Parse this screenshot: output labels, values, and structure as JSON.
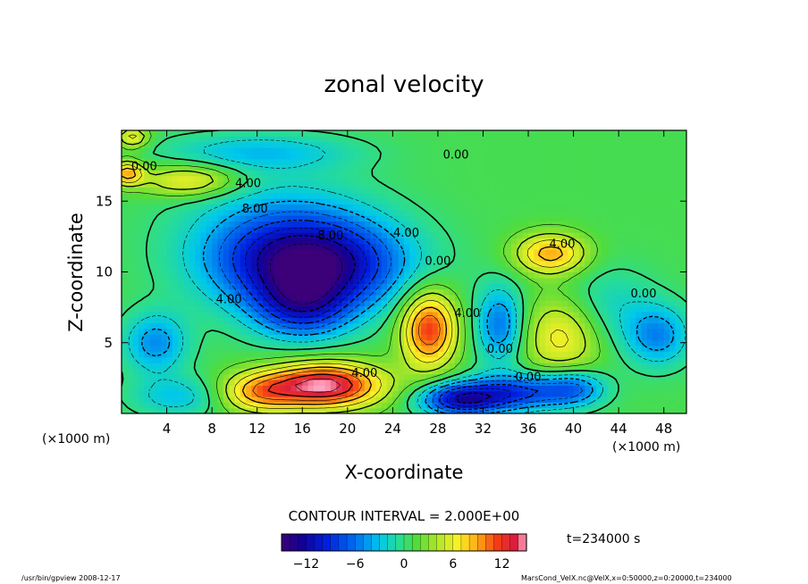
{
  "chart_data": {
    "type": "heatmap",
    "title": "zonal velocity",
    "xlabel": "X-coordinate",
    "ylabel": "Z-coordinate",
    "x_unit_left": "(×1000 m)",
    "x_unit_right": "(×1000 m)",
    "xlim": [
      0,
      50
    ],
    "ylim": [
      0,
      20
    ],
    "x_ticks": [
      "4",
      "8",
      "12",
      "16",
      "20",
      "24",
      "28",
      "32",
      "36",
      "40",
      "44",
      "48"
    ],
    "y_ticks": [
      "5",
      "10",
      "15"
    ],
    "contour_interval_text": "CONTOUR INTERVAL = 2.000E+00",
    "time_text": "t=234000 s",
    "colorbar": {
      "vmin": -15,
      "vmax": 15,
      "ticks": [
        "−12",
        "−6",
        "0",
        "6",
        "12"
      ]
    },
    "contour_labels": [
      {
        "text": "0.00",
        "x": 2,
        "y": 17.2
      },
      {
        "text": "4.00",
        "x": 11.2,
        "y": 16.0
      },
      {
        "text": "8.00",
        "x": 11.8,
        "y": 14.2
      },
      {
        "text": "8.00",
        "x": 18.5,
        "y": 12.3
      },
      {
        "text": "4.00",
        "x": 25.2,
        "y": 12.5
      },
      {
        "text": "0.00",
        "x": 28,
        "y": 10.5
      },
      {
        "text": "0.00",
        "x": 29.6,
        "y": 18.0
      },
      {
        "text": "4.00",
        "x": 39,
        "y": 11.7
      },
      {
        "text": "0.00",
        "x": 46.2,
        "y": 8.2
      },
      {
        "text": "4.00",
        "x": 9.5,
        "y": 7.8
      },
      {
        "text": "4.00",
        "x": 30.6,
        "y": 6.8
      },
      {
        "text": "0.00",
        "x": 33.5,
        "y": 4.3
      },
      {
        "text": "0.00",
        "x": 36,
        "y": 2.3
      },
      {
        "text": "4.00",
        "x": 21.5,
        "y": 2.6
      }
    ],
    "features": [
      {
        "x": 17,
        "z": 10.5,
        "u": -13,
        "sx": 5.5,
        "sz": 2.2
      },
      {
        "x": 16,
        "z": 7.5,
        "u": -8,
        "sx": 3.0,
        "sz": 1.6
      },
      {
        "x": 14,
        "z": 12.5,
        "u": -5,
        "sx": 6.0,
        "sz": 3.0
      },
      {
        "x": 18,
        "z": 2.0,
        "u": 14,
        "sx": 3.5,
        "sz": 1.1
      },
      {
        "x": 12,
        "z": 1.5,
        "u": 7,
        "sx": 2.5,
        "sz": 1.0
      },
      {
        "x": 27.2,
        "z": 6.0,
        "u": 11,
        "sx": 1.7,
        "sz": 1.9
      },
      {
        "x": 33.5,
        "z": 6.3,
        "u": -7,
        "sx": 1.5,
        "sz": 1.9
      },
      {
        "x": 35,
        "z": 1.5,
        "u": -9,
        "sx": 3.0,
        "sz": 0.9
      },
      {
        "x": 30,
        "z": 1.0,
        "u": -12,
        "sx": 2.5,
        "sz": 0.8
      },
      {
        "x": 39,
        "z": 5.5,
        "u": 6,
        "sx": 2.5,
        "sz": 2.0
      },
      {
        "x": 40,
        "z": 1.8,
        "u": -7,
        "sx": 2.0,
        "sz": 0.9
      },
      {
        "x": 38,
        "z": 11.3,
        "u": 8,
        "sx": 2.2,
        "sz": 1.0
      },
      {
        "x": 47.5,
        "z": 5.5,
        "u": -6,
        "sx": 2.0,
        "sz": 1.5
      },
      {
        "x": 3,
        "z": 5.0,
        "u": -6,
        "sx": 2.0,
        "sz": 1.5
      },
      {
        "x": 5,
        "z": 1.2,
        "u": -4,
        "sx": 3.0,
        "sz": 1.0
      },
      {
        "x": 6,
        "z": 16.5,
        "u": 6,
        "sx": 3.0,
        "sz": 0.8
      },
      {
        "x": 12,
        "z": 18.5,
        "u": -4,
        "sx": 6.0,
        "sz": 0.9
      },
      {
        "x": 0.5,
        "z": 17.0,
        "u": 8,
        "sx": 1.0,
        "sz": 0.6
      },
      {
        "x": 1,
        "z": 19.5,
        "u": 6,
        "sx": 1.0,
        "sz": 0.5
      },
      {
        "x": 43,
        "z": 7.5,
        "u": -3,
        "sx": 3.0,
        "sz": 2.0
      }
    ]
  },
  "footer": {
    "left": "/usr/bin/gpview  2008-12-17",
    "right": "MarsCond_VelX.nc@VelX,x=0:50000,z=0:20000,t=234000"
  }
}
